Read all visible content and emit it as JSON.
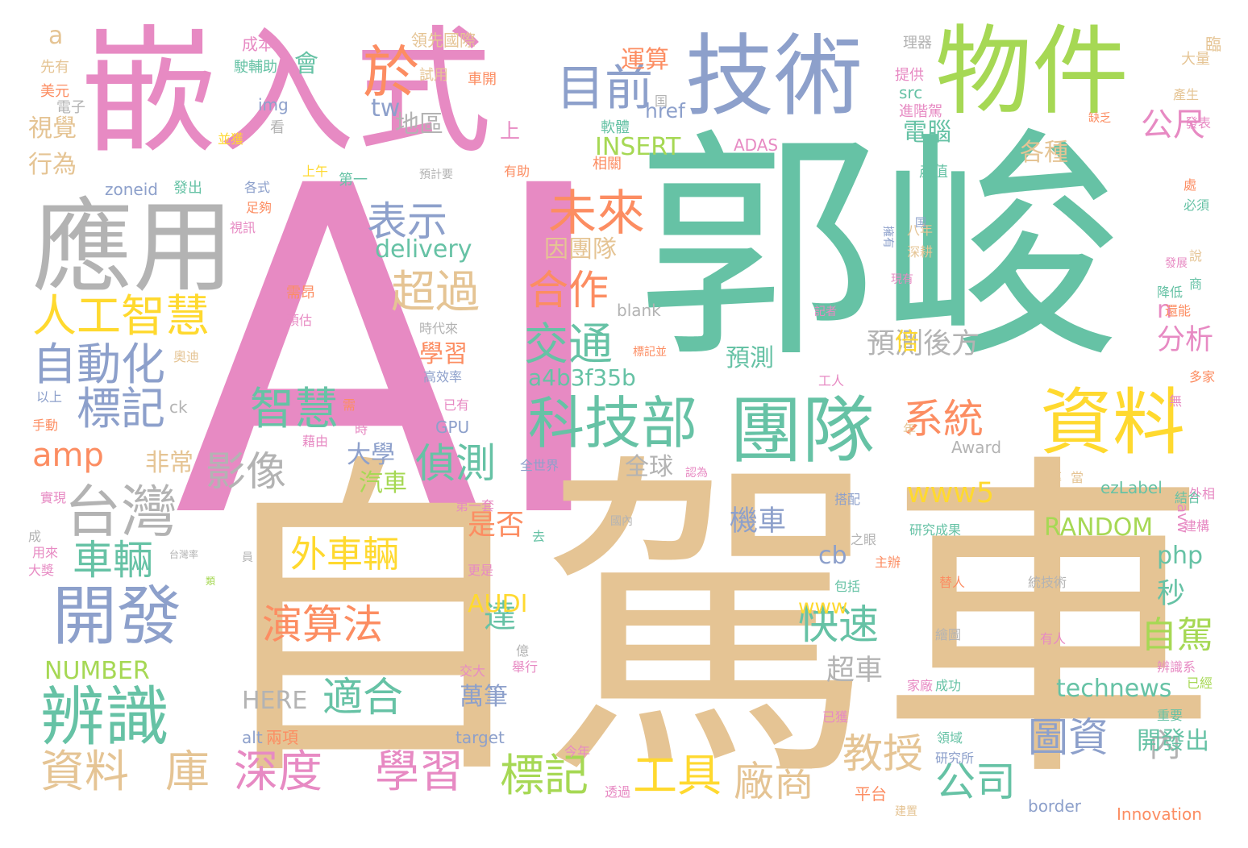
{
  "palette": {
    "pink": "#e78ac3",
    "teal": "#66c2a5",
    "tan": "#e5c494",
    "orange": "#fc8d62",
    "blue": "#8da0cb",
    "green": "#a6d854",
    "yellow": "#ffd92f",
    "gray": "#b3b3b3"
  },
  "words": [
    {
      "text": "AI",
      "color": "pink"
    },
    {
      "text": "郭峻",
      "color": "teal"
    },
    {
      "text": "自駕車",
      "color": "tan"
    },
    {
      "text": "嵌入式",
      "color": "pink"
    },
    {
      "text": "技術",
      "color": "blue"
    },
    {
      "text": "物件",
      "color": "green"
    },
    {
      "text": "應用",
      "color": "gray"
    },
    {
      "text": "團隊",
      "color": "teal"
    },
    {
      "text": "資料",
      "color": "yellow"
    },
    {
      "text": "科技部",
      "color": "teal"
    },
    {
      "text": "於",
      "color": "orange"
    },
    {
      "text": "目前",
      "color": "blue"
    },
    {
      "text": "台灣",
      "color": "gray"
    },
    {
      "text": "辨識",
      "color": "teal"
    },
    {
      "text": "開發",
      "color": "blue"
    },
    {
      "text": "人工智慧",
      "color": "yellow"
    },
    {
      "text": "自動化",
      "color": "blue"
    },
    {
      "text": "標記",
      "color": "blue"
    },
    {
      "text": "表示",
      "color": "blue"
    },
    {
      "text": "未來",
      "color": "orange"
    },
    {
      "text": "超過",
      "color": "tan"
    },
    {
      "text": "合作",
      "color": "orange"
    },
    {
      "text": "交通",
      "color": "teal"
    },
    {
      "text": "智慧",
      "color": "teal"
    },
    {
      "text": "偵測",
      "color": "teal"
    },
    {
      "text": "系統",
      "color": "orange"
    },
    {
      "text": "影像",
      "color": "gray"
    },
    {
      "text": "車輛",
      "color": "teal"
    },
    {
      "text": "amp",
      "color": "orange"
    },
    {
      "text": "外車輛",
      "color": "yellow"
    },
    {
      "text": "演算法",
      "color": "orange"
    },
    {
      "text": "適合",
      "color": "teal"
    },
    {
      "text": "快速",
      "color": "teal"
    },
    {
      "text": "達",
      "color": "teal"
    },
    {
      "text": "教授",
      "color": "tan"
    },
    {
      "text": "圖資",
      "color": "blue"
    },
    {
      "text": "資料",
      "color": "tan"
    },
    {
      "text": "庫",
      "color": "tan"
    },
    {
      "text": "深度",
      "color": "pink"
    },
    {
      "text": "學習",
      "color": "pink"
    },
    {
      "text": "標記",
      "color": "green"
    },
    {
      "text": "工具",
      "color": "yellow"
    },
    {
      "text": "廠商",
      "color": "tan"
    },
    {
      "text": "公司",
      "color": "teal"
    },
    {
      "text": "內",
      "color": "gray"
    },
    {
      "text": "自駕",
      "color": "green"
    },
    {
      "text": "公尺",
      "color": "pink"
    },
    {
      "text": "各種",
      "color": "tan"
    },
    {
      "text": "電腦",
      "color": "teal"
    },
    {
      "text": "運算",
      "color": "orange"
    },
    {
      "text": "地區",
      "color": "gray"
    },
    {
      "text": "INSERT",
      "color": "green"
    },
    {
      "text": "因團隊",
      "color": "tan"
    },
    {
      "text": "delivery",
      "color": "teal"
    },
    {
      "text": "a4b3f35b",
      "color": "teal"
    },
    {
      "text": "預測後方",
      "color": "gray"
    },
    {
      "text": "預測",
      "color": "teal"
    },
    {
      "text": "分析",
      "color": "pink"
    },
    {
      "text": "www5",
      "color": "yellow"
    },
    {
      "text": "RANDOM",
      "color": "green"
    },
    {
      "text": "php",
      "color": "teal"
    },
    {
      "text": "technews",
      "color": "teal"
    },
    {
      "text": "機車",
      "color": "blue"
    },
    {
      "text": "超車",
      "color": "gray"
    },
    {
      "text": "萬筆",
      "color": "blue"
    },
    {
      "text": "AUDI",
      "color": "yellow"
    },
    {
      "text": "NUMBER",
      "color": "green"
    },
    {
      "text": "HERE",
      "color": "gray"
    },
    {
      "text": "是否",
      "color": "orange"
    },
    {
      "text": "全球",
      "color": "gray"
    },
    {
      "text": "汽車",
      "color": "green"
    },
    {
      "text": "大學",
      "color": "blue"
    },
    {
      "text": "非常",
      "color": "tan"
    },
    {
      "text": "視覺",
      "color": "tan"
    },
    {
      "text": "行為",
      "color": "tan"
    },
    {
      "text": "平台",
      "color": "orange"
    },
    {
      "text": "開發出",
      "color": "teal"
    },
    {
      "text": "秒",
      "color": "teal"
    },
    {
      "text": "倍",
      "color": "yellow"
    },
    {
      "text": "學習",
      "color": "orange"
    },
    {
      "text": "cb",
      "color": "blue"
    },
    {
      "text": "n",
      "color": "pink"
    },
    {
      "text": "tw",
      "color": "blue"
    },
    {
      "text": "a",
      "color": "tan"
    },
    {
      "text": "www",
      "color": "yellow"
    },
    {
      "text": "會",
      "color": "teal"
    },
    {
      "text": "上",
      "color": "pink"
    },
    {
      "text": "img",
      "color": "blue"
    },
    {
      "text": "href",
      "color": "blue"
    },
    {
      "text": "src",
      "color": "teal"
    },
    {
      "text": "Award",
      "color": "gray"
    },
    {
      "text": "ezLabel",
      "color": "teal"
    },
    {
      "text": "GPU",
      "color": "blue"
    },
    {
      "text": "blank",
      "color": "gray"
    },
    {
      "text": "target",
      "color": "blue"
    },
    {
      "text": "border",
      "color": "blue"
    },
    {
      "text": "Innovation",
      "color": "orange"
    },
    {
      "text": "ADAS",
      "color": "pink"
    },
    {
      "text": "zoneid",
      "color": "blue"
    },
    {
      "text": "alt",
      "color": "blue"
    },
    {
      "text": "兩項",
      "color": "orange"
    },
    {
      "text": "ck",
      "color": "gray"
    },
    {
      "text": "avw",
      "color": "pink"
    },
    {
      "text": "成本",
      "color": "pink"
    },
    {
      "text": "領先國際",
      "color": "tan"
    },
    {
      "text": "理器",
      "color": "gray"
    },
    {
      "text": "大量",
      "color": "tan"
    },
    {
      "text": "臨",
      "color": "tan"
    },
    {
      "text": "先有",
      "color": "tan"
    },
    {
      "text": "駛輔助",
      "color": "teal"
    },
    {
      "text": "国",
      "color": "gray"
    },
    {
      "text": "提供",
      "color": "pink"
    },
    {
      "text": "美元",
      "color": "orange"
    },
    {
      "text": "試用",
      "color": "tan"
    },
    {
      "text": "車開",
      "color": "orange"
    },
    {
      "text": "進階駕",
      "color": "pink"
    },
    {
      "text": "產生",
      "color": "tan"
    },
    {
      "text": "電子",
      "color": "gray"
    },
    {
      "text": "看",
      "color": "gray"
    },
    {
      "text": "軟體",
      "color": "teal"
    },
    {
      "text": "缺乏",
      "color": "orange"
    },
    {
      "text": "發表",
      "color": "pink"
    },
    {
      "text": "並獲",
      "color": "yellow"
    },
    {
      "text": "相關",
      "color": "orange"
    },
    {
      "text": "產值",
      "color": "teal"
    },
    {
      "text": "上午",
      "color": "yellow"
    },
    {
      "text": "第一",
      "color": "teal"
    },
    {
      "text": "預計要",
      "color": "gray"
    },
    {
      "text": "有助",
      "color": "orange"
    },
    {
      "text": "發出",
      "color": "teal"
    },
    {
      "text": "各式",
      "color": "blue"
    },
    {
      "text": "處",
      "color": "orange"
    },
    {
      "text": "必須",
      "color": "teal"
    },
    {
      "text": "足夠",
      "color": "orange"
    },
    {
      "text": "八年",
      "color": "tan"
    },
    {
      "text": "視訊",
      "color": "pink"
    },
    {
      "text": "擁有",
      "color": "blue"
    },
    {
      "text": "国",
      "color": "blue"
    },
    {
      "text": "深耕",
      "color": "tan"
    },
    {
      "text": "說",
      "color": "tan"
    },
    {
      "text": "發展",
      "color": "pink"
    },
    {
      "text": "現有",
      "color": "pink"
    },
    {
      "text": "需昂",
      "color": "orange"
    },
    {
      "text": "降低",
      "color": "teal"
    },
    {
      "text": "商",
      "color": "teal"
    },
    {
      "text": "預估",
      "color": "pink"
    },
    {
      "text": "記者",
      "color": "pink"
    },
    {
      "text": "還能",
      "color": "orange"
    },
    {
      "text": "時代來",
      "color": "gray"
    },
    {
      "text": "奧迪",
      "color": "tan"
    },
    {
      "text": "標記並",
      "color": "orange"
    },
    {
      "text": "工人",
      "color": "pink"
    },
    {
      "text": "多家",
      "color": "orange"
    },
    {
      "text": "高效率",
      "color": "blue"
    },
    {
      "text": "以上",
      "color": "blue"
    },
    {
      "text": "已有",
      "color": "pink"
    },
    {
      "text": "需",
      "color": "orange"
    },
    {
      "text": "無",
      "color": "pink"
    },
    {
      "text": "時",
      "color": "pink"
    },
    {
      "text": "手動",
      "color": "orange"
    },
    {
      "text": "藉由",
      "color": "pink"
    },
    {
      "text": "年",
      "color": "tan"
    },
    {
      "text": "效率",
      "color": "tan"
    },
    {
      "text": "當",
      "color": "tan"
    },
    {
      "text": "認為",
      "color": "pink"
    },
    {
      "text": "全世界",
      "color": "blue"
    },
    {
      "text": "實現",
      "color": "pink"
    },
    {
      "text": "第一套",
      "color": "pink"
    },
    {
      "text": "搭配",
      "color": "blue"
    },
    {
      "text": "外相",
      "color": "pink"
    },
    {
      "text": "結合",
      "color": "teal"
    },
    {
      "text": "建構",
      "color": "pink"
    },
    {
      "text": "去",
      "color": "teal"
    },
    {
      "text": "國內",
      "color": "gray"
    },
    {
      "text": "研究成果",
      "color": "teal"
    },
    {
      "text": "成",
      "color": "gray"
    },
    {
      "text": "之眼",
      "color": "gray"
    },
    {
      "text": "主辦",
      "color": "orange"
    },
    {
      "text": "用來",
      "color": "pink"
    },
    {
      "text": "大獎",
      "color": "pink"
    },
    {
      "text": "台灣率",
      "color": "gray"
    },
    {
      "text": "員",
      "color": "gray"
    },
    {
      "text": "更是",
      "color": "pink"
    },
    {
      "text": "類",
      "color": "green"
    },
    {
      "text": "包括",
      "color": "teal"
    },
    {
      "text": "替人",
      "color": "orange"
    },
    {
      "text": "統技術",
      "color": "gray"
    },
    {
      "text": "億",
      "color": "gray"
    },
    {
      "text": "舉行",
      "color": "pink"
    },
    {
      "text": "交大",
      "color": "pink"
    },
    {
      "text": "繪圖",
      "color": "gray"
    },
    {
      "text": "有人",
      "color": "pink"
    },
    {
      "text": "辨識系",
      "color": "pink"
    },
    {
      "text": "家廠",
      "color": "pink"
    },
    {
      "text": "成功",
      "color": "teal"
    },
    {
      "text": "已經",
      "color": "green"
    },
    {
      "text": "已獲",
      "color": "pink"
    },
    {
      "text": "重要",
      "color": "teal"
    },
    {
      "text": "領域",
      "color": "teal"
    },
    {
      "text": "研究所",
      "color": "blue"
    },
    {
      "text": "今年",
      "color": "pink"
    },
    {
      "text": "透過",
      "color": "pink"
    },
    {
      "text": "建置",
      "color": "tan"
    }
  ]
}
